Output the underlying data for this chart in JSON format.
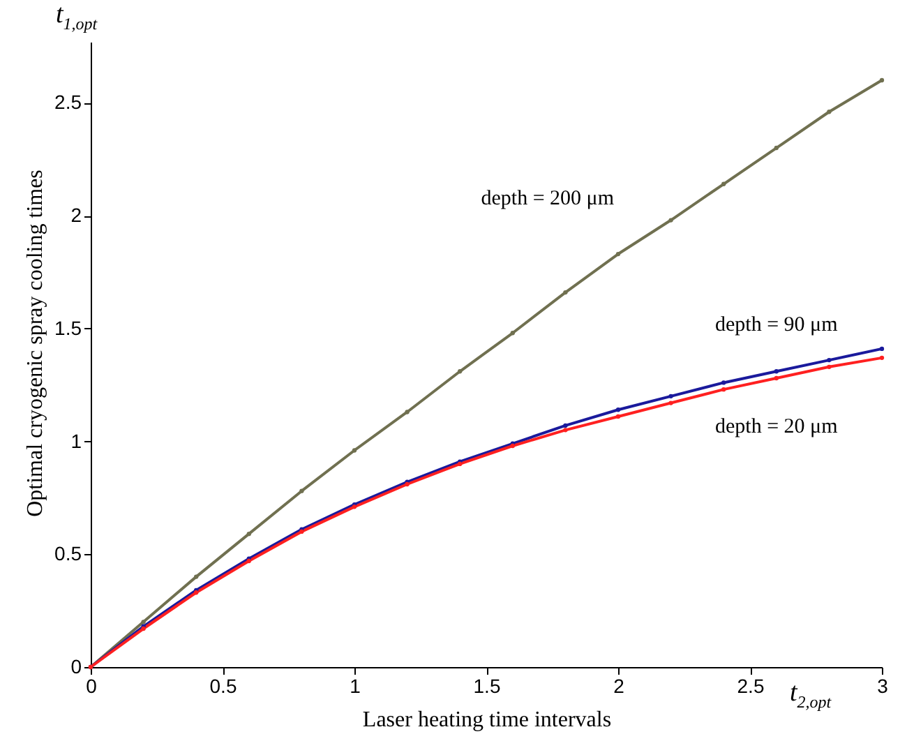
{
  "chart_data": {
    "type": "line",
    "xlabel": "Laser heating  time  intervals",
    "ylabel": "Optimal  cryogenic  spray  cooling  times",
    "annotations": [
      "t$_{1,opt}$",
      "t$_{2,opt}$"
    ],
    "x": [
      0,
      0.2,
      0.4,
      0.6,
      0.8,
      1.0,
      1.2,
      1.4,
      1.6,
      1.8,
      2.0,
      2.2,
      2.4,
      2.6,
      2.8,
      3.0
    ],
    "series": [
      {
        "name": "depth = 200 μm",
        "color": "#707050",
        "values": [
          0,
          0.2,
          0.4,
          0.59,
          0.78,
          0.96,
          1.13,
          1.31,
          1.48,
          1.66,
          1.83,
          1.98,
          2.14,
          2.3,
          2.46,
          2.6
        ]
      },
      {
        "name": "depth = 90 μm",
        "color": "#1a1a9c",
        "values": [
          0,
          0.18,
          0.34,
          0.48,
          0.61,
          0.72,
          0.82,
          0.91,
          0.99,
          1.07,
          1.14,
          1.2,
          1.26,
          1.31,
          1.36,
          1.41
        ]
      },
      {
        "name": "depth = 20 μm",
        "color": "#ff2020",
        "values": [
          0,
          0.17,
          0.33,
          0.47,
          0.6,
          0.71,
          0.81,
          0.9,
          0.98,
          1.05,
          1.11,
          1.17,
          1.23,
          1.28,
          1.33,
          1.37
        ]
      }
    ],
    "xlim": [
      0,
      3
    ],
    "ylim": [
      0,
      2.77
    ],
    "xticks": [
      0,
      0.5,
      1,
      1.5,
      2,
      2.5,
      3
    ],
    "yticks": [
      0,
      0.5,
      1,
      1.5,
      2,
      2.5
    ],
    "grid": false,
    "legend": false,
    "marker": "circle",
    "line_style": "solid"
  }
}
